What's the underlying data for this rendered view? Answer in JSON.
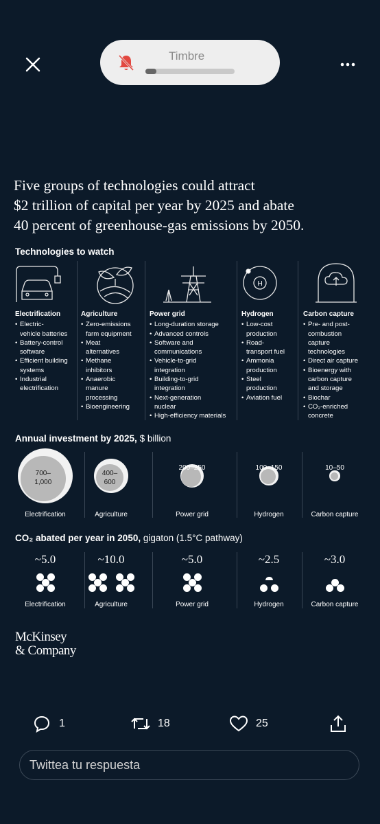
{
  "banner": {
    "title": "Timbre",
    "volume_level": 0.12
  },
  "infographic": {
    "headline_lines": [
      "Five groups of technologies could attract",
      "$2 trillion of capital per year by 2025 and abate",
      "40 percent of greenhouse-gas emissions by 2050."
    ],
    "tech_section_title": "Technologies to watch",
    "technologies": [
      {
        "name": "Electrification",
        "icon": "car-charging-icon",
        "items": [
          "Electric-\nvehicle batteries",
          "Battery-control\nsoftware",
          "Efficient building\nsystems",
          "Industrial\nelectrification"
        ]
      },
      {
        "name": "Agriculture",
        "icon": "leaf-globe-icon",
        "items": [
          "Zero-emissions\nfarm equipment",
          "Meat\nalternatives",
          "Methane\ninhibitors",
          "Anaerobic\nmanure\nprocessing",
          "Bioengineering"
        ]
      },
      {
        "name": "Power grid",
        "icon": "transmission-tower-icon",
        "items": [
          "Long-duration storage",
          "Advanced controls",
          "Software and\ncommunications",
          "Vehicle-to-grid\nintegration",
          "Building-to-grid\nintegration",
          "Next-generation\nnuclear",
          "High-efficiency materials"
        ]
      },
      {
        "name": "Hydrogen",
        "icon": "hydrogen-atom-icon",
        "items": [
          "Low-cost\nproduction",
          "Road-\ntransport fuel",
          "Ammonia\nproduction",
          "Steel\nproduction",
          "Aviation fuel"
        ]
      },
      {
        "name": "Carbon capture",
        "icon": "carbon-capture-icon",
        "items": [
          "Pre- and post-\ncombustion\ncapture\ntechnologies",
          "Direct air capture",
          "Bioenergy with\ncarbon capture\nand storage",
          "Biochar",
          "CO₂-enriched\nconcrete"
        ]
      }
    ],
    "investment": {
      "title_bold": "Annual investment by 2025,",
      "title_light": " $ billion",
      "items": [
        {
          "range": "700–\n1,000",
          "label": "Electrification",
          "size": 1.0,
          "inner": 0.82
        },
        {
          "range": "400–\n600",
          "label": "Agriculture",
          "size": 0.62,
          "inner": 0.8
        },
        {
          "range": "200–250",
          "label": "Power grid",
          "size": 0.42,
          "inner": 0.86
        },
        {
          "range": "100–150",
          "label": "Hydrogen",
          "size": 0.34,
          "inner": 0.82
        },
        {
          "range": "10–50",
          "label": "Carbon capture",
          "size": 0.19,
          "inner": 0.72
        }
      ]
    },
    "abatement": {
      "title_bold": "CO₂ abated per year in 2050,",
      "title_light": " gigaton (1.5°C pathway)",
      "items": [
        {
          "value": "~5.0",
          "label": "Electrification",
          "dots": 5
        },
        {
          "value": "~10.0",
          "label": "Agriculture",
          "dots": 10
        },
        {
          "value": "~5.0",
          "label": "Power grid",
          "dots": 5
        },
        {
          "value": "~2.5",
          "label": "Hydrogen",
          "dots": 2.5
        },
        {
          "value": "~3.0",
          "label": "Carbon capture",
          "dots": 3
        }
      ]
    },
    "logo_lines": [
      "McKinsey",
      "& Company"
    ]
  },
  "actions": {
    "replies": "1",
    "retweets": "18",
    "likes": "25"
  },
  "reply": {
    "placeholder": "Twittea tu respuesta"
  },
  "colors": {
    "background": "#0c1a29",
    "banner": "#eeeeee",
    "mute_red": "#e2473f"
  }
}
